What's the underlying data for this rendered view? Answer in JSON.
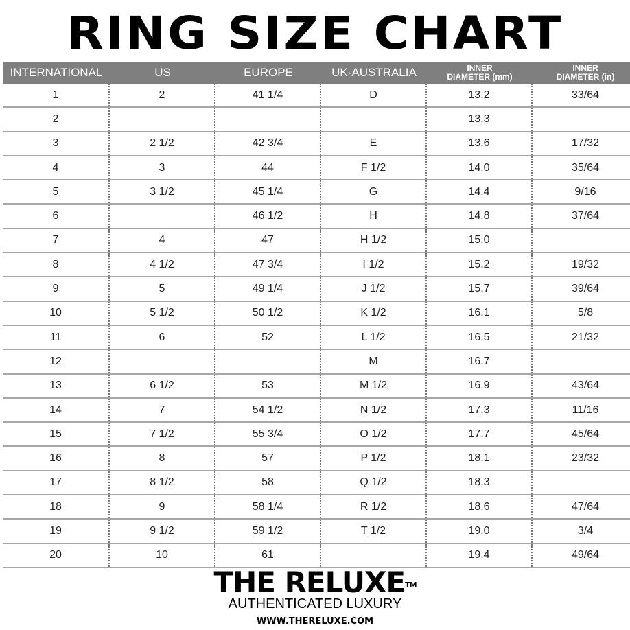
{
  "title": "RING SIZE CHART",
  "headers": [
    "INTERNATIONAL",
    "US",
    "EUROPE",
    "UK·AUSTRALIA",
    [
      "INNER",
      "DIAMETER (mm)"
    ],
    [
      "INNER",
      "DIAMETER (in)"
    ]
  ],
  "rows": [
    [
      "1",
      "2",
      "41 1/4",
      "D",
      "13.2",
      "33/64"
    ],
    [
      "2",
      "",
      "",
      "",
      "13.3",
      ""
    ],
    [
      "3",
      "2 1/2",
      "42 3/4",
      "E",
      "13.6",
      "17/32"
    ],
    [
      "4",
      "3",
      "44",
      "F 1/2",
      "14.0",
      "35/64"
    ],
    [
      "5",
      "3 1/2",
      "45 1/4",
      "G",
      "14.4",
      "9/16"
    ],
    [
      "6",
      "",
      "46 1/2",
      "H",
      "14.8",
      "37/64"
    ],
    [
      "7",
      "4",
      "47",
      "H 1/2",
      "15.0",
      ""
    ],
    [
      "8",
      "4 1/2",
      "47 3/4",
      "I 1/2",
      "15.2",
      "19/32"
    ],
    [
      "9",
      "5",
      "49 1/4",
      "J 1/2",
      "15.7",
      "39/64"
    ],
    [
      "10",
      "5 1/2",
      "50 1/2",
      "K 1/2",
      "16.1",
      "5/8"
    ],
    [
      "11",
      "6",
      "52",
      "L 1/2",
      "16.5",
      "21/32"
    ],
    [
      "12",
      "",
      "",
      "M",
      "16.7",
      ""
    ],
    [
      "13",
      "6 1/2",
      "53",
      "M 1/2",
      "16.9",
      "43/64"
    ],
    [
      "14",
      "7",
      "54 1/2",
      "N 1/2",
      "17.3",
      "11/16"
    ],
    [
      "15",
      "7 1/2",
      "55 3/4",
      "O 1/2",
      "17.7",
      "45/64"
    ],
    [
      "16",
      "8",
      "57",
      "P 1/2",
      "18.1",
      "23/32"
    ],
    [
      "17",
      "8 1/2",
      "58",
      "Q 1/2",
      "18.3",
      ""
    ],
    [
      "18",
      "9",
      "58 1/4",
      "R 1/2",
      "18.6",
      "47/64"
    ],
    [
      "19",
      "9 1/2",
      "59 1/2",
      "T 1/2",
      "19.0",
      "3/4"
    ],
    [
      "20",
      "10",
      "61",
      "",
      "19.4",
      "49/64"
    ]
  ],
  "brand": {
    "name": "THE RELUXE",
    "tm": "TM",
    "tagline": "AUTHENTICATED LUXURY",
    "url": "WWW.THERELUXE.COM"
  },
  "colors": {
    "header_bg": "#7f7f7f",
    "header_text": "#ffffff",
    "row_line": "#a6a6a6"
  }
}
